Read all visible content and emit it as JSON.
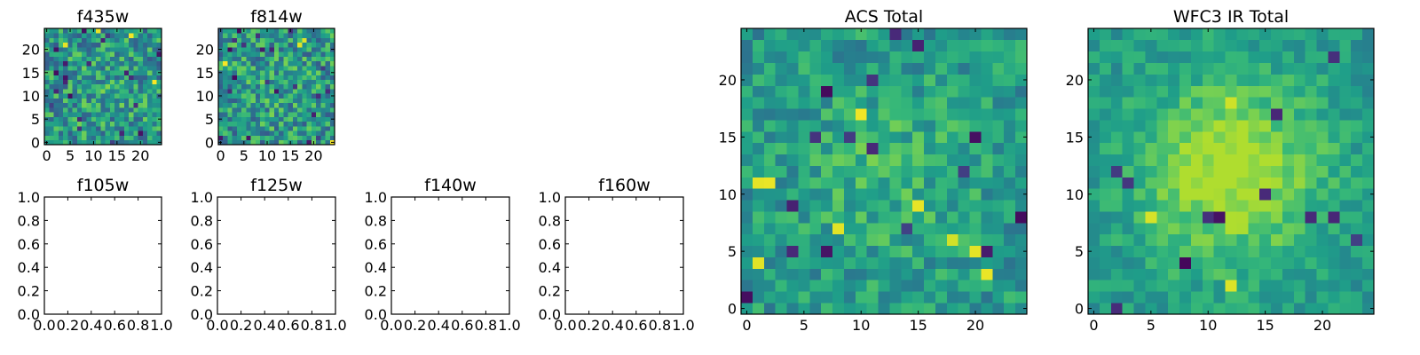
{
  "chart_data": [
    {
      "type": "heatmap",
      "title": "f435w",
      "colormap": "viridis",
      "grid": [
        25,
        25
      ],
      "xlim": [
        -0.5,
        24.5
      ],
      "ylim": [
        -0.5,
        24.5
      ],
      "xticks": [
        0,
        5,
        10,
        15,
        20
      ],
      "yticks": [
        0,
        5,
        10,
        15,
        20
      ],
      "seed": 11,
      "smooth": 0.05,
      "noise": 0.5,
      "dark_count": 22,
      "bright_count": 4,
      "bright_value": 0.95
    },
    {
      "type": "heatmap",
      "title": "f814w",
      "colormap": "viridis",
      "grid": [
        25,
        25
      ],
      "xlim": [
        -0.5,
        24.5
      ],
      "ylim": [
        -0.5,
        24.5
      ],
      "xticks": [
        0,
        5,
        10,
        15,
        20
      ],
      "yticks": [
        0,
        5,
        10,
        15,
        20
      ],
      "seed": 23,
      "smooth": 0.05,
      "noise": 0.5,
      "dark_count": 22,
      "bright_count": 4,
      "bright_value": 0.95
    },
    {
      "type": "empty",
      "title": "f105w",
      "xlim": [
        0,
        1
      ],
      "ylim": [
        0,
        1
      ],
      "xticks": [
        "0.0",
        "0.2",
        "0.4",
        "0.6",
        "0.8",
        "1.0"
      ],
      "yticks": [
        "0.0",
        "0.2",
        "0.4",
        "0.6",
        "0.8",
        "1.0"
      ]
    },
    {
      "type": "empty",
      "title": "f125w",
      "xlim": [
        0,
        1
      ],
      "ylim": [
        0,
        1
      ],
      "xticks": [
        "0.0",
        "0.2",
        "0.4",
        "0.6",
        "0.8",
        "1.0"
      ],
      "yticks": [
        "0.0",
        "0.2",
        "0.4",
        "0.6",
        "0.8",
        "1.0"
      ]
    },
    {
      "type": "empty",
      "title": "f140w",
      "xlim": [
        0,
        1
      ],
      "ylim": [
        0,
        1
      ],
      "xticks": [
        "0.0",
        "0.2",
        "0.4",
        "0.6",
        "0.8",
        "1.0"
      ],
      "yticks": [
        "0.0",
        "0.2",
        "0.4",
        "0.6",
        "0.8",
        "1.0"
      ]
    },
    {
      "type": "empty",
      "title": "f160w",
      "xlim": [
        0,
        1
      ],
      "ylim": [
        0,
        1
      ],
      "xticks": [
        "0.0",
        "0.2",
        "0.4",
        "0.6",
        "0.8",
        "1.0"
      ],
      "yticks": [
        "0.0",
        "0.2",
        "0.4",
        "0.6",
        "0.8",
        "1.0"
      ]
    },
    {
      "type": "heatmap",
      "title": "ACS Total",
      "colormap": "viridis",
      "grid": [
        25,
        25
      ],
      "xlim": [
        -0.5,
        24.5
      ],
      "ylim": [
        -0.5,
        24.5
      ],
      "xticks": [
        0,
        5,
        10,
        15,
        20
      ],
      "yticks": [
        0,
        5,
        10,
        15,
        20
      ],
      "seed": 37,
      "smooth": 0.12,
      "noise": 0.32,
      "dark_count": 16,
      "bright_count": 9,
      "bright_value": 0.93
    },
    {
      "type": "heatmap",
      "title": "WFC3 IR Total",
      "colormap": "viridis",
      "grid": [
        25,
        25
      ],
      "xlim": [
        -0.5,
        24.5
      ],
      "ylim": [
        -0.5,
        24.5
      ],
      "xticks": [
        0,
        5,
        10,
        15,
        20
      ],
      "yticks": [
        0,
        5,
        10,
        15,
        20
      ],
      "seed": 53,
      "smooth": 0.38,
      "noise": 0.22,
      "dark_count": 12,
      "bright_count": 3,
      "bright_value": 0.9
    }
  ]
}
